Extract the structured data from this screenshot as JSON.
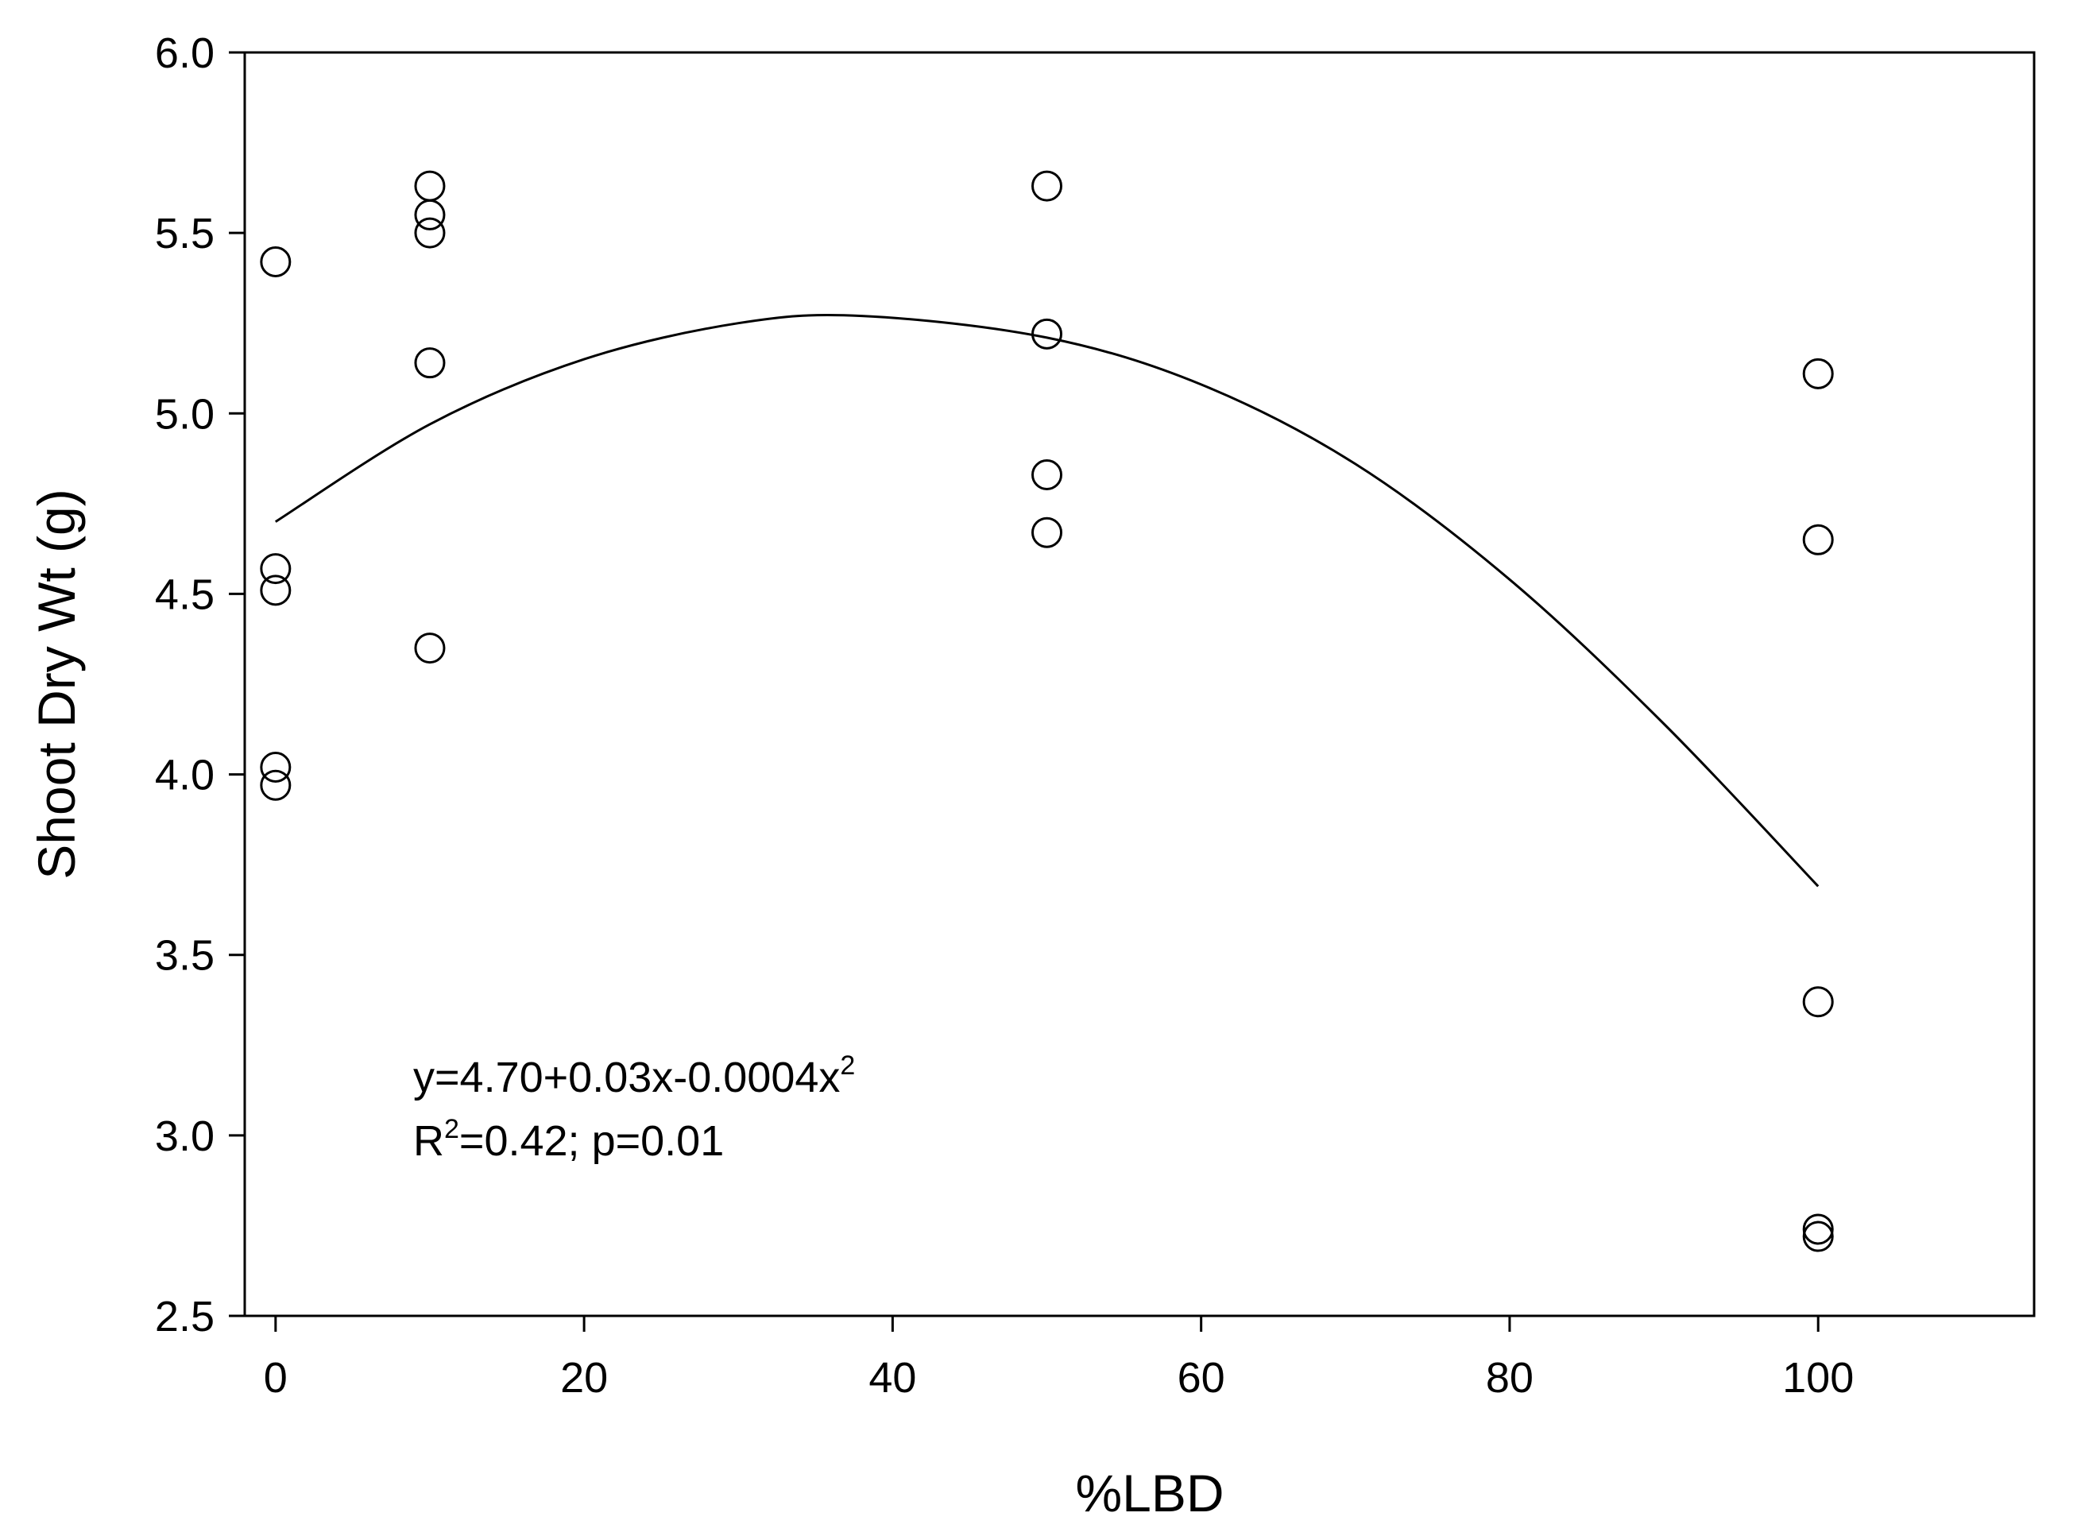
{
  "chart_data": {
    "type": "scatter",
    "title": "",
    "xlabel": "%LBD",
    "ylabel": "Shoot Dry Wt (g)",
    "xlim": [
      -2,
      114
    ],
    "ylim": [
      2.5,
      6.0
    ],
    "x_ticks": [
      0,
      20,
      40,
      60,
      80,
      100
    ],
    "x_tick_labels": [
      "0",
      "20",
      "40",
      "60",
      "80",
      "100"
    ],
    "y_ticks": [
      2.5,
      3.0,
      3.5,
      4.0,
      4.5,
      5.0,
      5.5,
      6.0
    ],
    "y_tick_labels": [
      "2.5",
      "3.0",
      "3.5",
      "4.0",
      "4.5",
      "5.0",
      "5.5",
      "6.0"
    ],
    "grid": false,
    "marker": "open-circle",
    "points": [
      {
        "x": 0,
        "y": 5.42
      },
      {
        "x": 0,
        "y": 4.57
      },
      {
        "x": 0,
        "y": 4.51
      },
      {
        "x": 0,
        "y": 4.02
      },
      {
        "x": 0,
        "y": 3.97
      },
      {
        "x": 10,
        "y": 5.63
      },
      {
        "x": 10,
        "y": 5.55
      },
      {
        "x": 10,
        "y": 5.5
      },
      {
        "x": 10,
        "y": 5.14
      },
      {
        "x": 10,
        "y": 4.35
      },
      {
        "x": 50,
        "y": 5.63
      },
      {
        "x": 50,
        "y": 5.22
      },
      {
        "x": 50,
        "y": 4.83
      },
      {
        "x": 50,
        "y": 4.67
      },
      {
        "x": 100,
        "y": 5.11
      },
      {
        "x": 100,
        "y": 4.65
      },
      {
        "x": 100,
        "y": 3.37
      },
      {
        "x": 100,
        "y": 2.74
      },
      {
        "x": 100,
        "y": 2.72
      }
    ],
    "fit": {
      "type": "quadratic",
      "x_range": [
        0,
        100
      ],
      "curve": [
        {
          "x": 0,
          "y": 4.7
        },
        {
          "x": 10,
          "y": 4.97
        },
        {
          "x": 20,
          "y": 5.15
        },
        {
          "x": 30,
          "y": 5.25
        },
        {
          "x": 38,
          "y": 5.27
        },
        {
          "x": 50,
          "y": 5.21
        },
        {
          "x": 60,
          "y": 5.08
        },
        {
          "x": 70,
          "y": 4.86
        },
        {
          "x": 80,
          "y": 4.54
        },
        {
          "x": 90,
          "y": 4.14
        },
        {
          "x": 100,
          "y": 3.69
        }
      ]
    },
    "annotation": {
      "equation_prefix": "y=4.70+0.03x-0.0004x",
      "equation_sup": "2",
      "r2_prefix": "R",
      "r2_sup": "2",
      "r2_suffix": "=0.42; p=0.01"
    }
  }
}
